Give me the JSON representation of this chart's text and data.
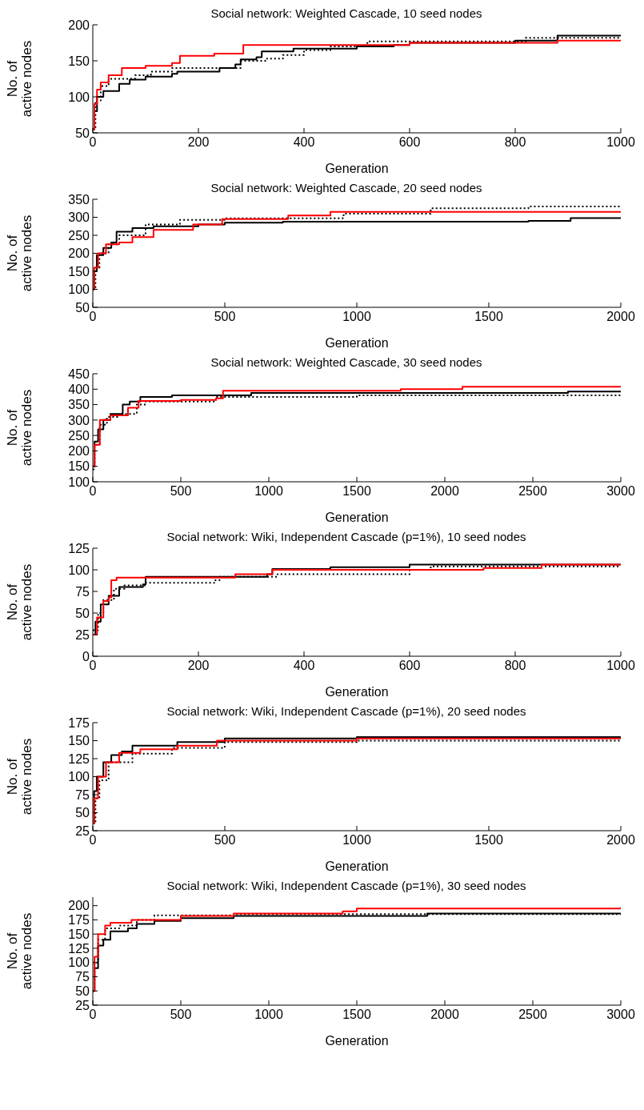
{
  "chart_data": [
    {
      "type": "step",
      "title": "Social network: Weighted Cascade, 10 seed nodes",
      "xlabel": "Generation",
      "ylabel": "No. of\nactive nodes",
      "xlim": [
        0,
        1000
      ],
      "xticks": [
        0,
        200,
        400,
        600,
        800,
        1000
      ],
      "ylim": [
        50,
        200
      ],
      "yticks": [
        50,
        100,
        150,
        200
      ],
      "series": [
        {
          "color": "#000000",
          "line_style": "solid",
          "x": [
            0,
            3,
            8,
            20,
            50,
            70,
            100,
            150,
            160,
            240,
            270,
            280,
            310,
            320,
            380,
            500,
            570,
            600,
            800,
            880,
            1000
          ],
          "values": [
            55,
            80,
            100,
            108,
            118,
            124,
            128,
            132,
            135,
            140,
            145,
            152,
            155,
            163,
            167,
            170,
            172,
            175,
            178,
            185,
            185
          ]
        },
        {
          "color": "#000000",
          "line_style": "dotted",
          "x": [
            0,
            5,
            15,
            30,
            80,
            110,
            150,
            280,
            330,
            360,
            400,
            450,
            520,
            820,
            1000
          ],
          "values": [
            55,
            95,
            115,
            125,
            130,
            135,
            140,
            150,
            153,
            158,
            165,
            170,
            177,
            182,
            182
          ]
        },
        {
          "color": "#ff0000",
          "line_style": "solid",
          "x": [
            0,
            3,
            8,
            15,
            30,
            55,
            100,
            150,
            165,
            230,
            285,
            600,
            880,
            1000
          ],
          "values": [
            55,
            90,
            110,
            120,
            130,
            140,
            143,
            147,
            157,
            160,
            172,
            175,
            178,
            178
          ]
        }
      ]
    },
    {
      "type": "step",
      "title": "Social network: Weighted Cascade, 20 seed nodes",
      "xlabel": "Generation",
      "ylabel": "No. of\nactive nodes",
      "xlim": [
        0,
        2000
      ],
      "xticks": [
        0,
        500,
        1000,
        1500,
        2000
      ],
      "ylim": [
        50,
        350
      ],
      "yticks": [
        50,
        100,
        150,
        200,
        250,
        300,
        350
      ],
      "series": [
        {
          "color": "#000000",
          "line_style": "solid",
          "x": [
            0,
            5,
            15,
            40,
            70,
            90,
            150,
            230,
            400,
            500,
            720,
            1650,
            1810,
            2000
          ],
          "values": [
            100,
            150,
            195,
            215,
            230,
            260,
            270,
            275,
            280,
            285,
            288,
            290,
            298,
            298
          ]
        },
        {
          "color": "#000000",
          "line_style": "dotted",
          "x": [
            0,
            10,
            25,
            60,
            100,
            200,
            330,
            500,
            950,
            1280,
            1650,
            2000
          ],
          "values": [
            100,
            160,
            200,
            225,
            250,
            280,
            293,
            297,
            310,
            325,
            330,
            330
          ]
        },
        {
          "color": "#ff0000",
          "line_style": "solid",
          "x": [
            0,
            5,
            20,
            50,
            100,
            150,
            230,
            380,
            490,
            740,
            900,
            2000
          ],
          "values": [
            100,
            160,
            200,
            225,
            230,
            245,
            265,
            280,
            295,
            305,
            315,
            315
          ]
        }
      ]
    },
    {
      "type": "step",
      "title": "Social network: Weighted Cascade, 30 seed nodes",
      "xlabel": "Generation",
      "ylabel": "No. of\nactive nodes",
      "xlim": [
        0,
        3000
      ],
      "xticks": [
        0,
        500,
        1000,
        1500,
        2000,
        2500,
        3000
      ],
      "ylim": [
        100,
        450
      ],
      "yticks": [
        100,
        150,
        200,
        250,
        300,
        350,
        400,
        450
      ],
      "series": [
        {
          "color": "#000000",
          "line_style": "solid",
          "x": [
            0,
            10,
            30,
            60,
            100,
            170,
            210,
            270,
            450,
            900,
            2700,
            3000
          ],
          "values": [
            150,
            230,
            270,
            300,
            320,
            350,
            360,
            375,
            380,
            388,
            392,
            395
          ]
        },
        {
          "color": "#000000",
          "line_style": "dotted",
          "x": [
            0,
            10,
            40,
            80,
            150,
            250,
            300,
            700,
            1500,
            3000
          ],
          "values": [
            140,
            220,
            285,
            310,
            320,
            350,
            360,
            375,
            380,
            380
          ]
        },
        {
          "color": "#ff0000",
          "line_style": "solid",
          "x": [
            0,
            10,
            40,
            100,
            200,
            260,
            500,
            700,
            740,
            1750,
            2100,
            3000
          ],
          "values": [
            150,
            220,
            300,
            315,
            340,
            362,
            365,
            370,
            395,
            400,
            408,
            408
          ]
        }
      ]
    },
    {
      "type": "step",
      "title": "Social network: Wiki, Independent Cascade (p=1%), 10 seed nodes",
      "xlabel": "Generation",
      "ylabel": "No. of\nactive nodes",
      "xlim": [
        0,
        1000
      ],
      "xticks": [
        0,
        200,
        400,
        600,
        800,
        1000
      ],
      "ylim": [
        0,
        125
      ],
      "yticks": [
        0,
        25,
        50,
        75,
        100,
        125
      ],
      "series": [
        {
          "color": "#000000",
          "line_style": "solid",
          "x": [
            0,
            5,
            15,
            30,
            50,
            95,
            100,
            330,
            340,
            450,
            600,
            1000
          ],
          "values": [
            25,
            40,
            60,
            70,
            80,
            83,
            92,
            95,
            101,
            103,
            106,
            107
          ]
        },
        {
          "color": "#000000",
          "line_style": "dotted",
          "x": [
            0,
            10,
            20,
            40,
            60,
            100,
            230,
            240,
            350,
            600,
            640,
            1000
          ],
          "values": [
            30,
            50,
            65,
            78,
            82,
            85,
            88,
            92,
            95,
            100,
            104,
            104
          ]
        },
        {
          "color": "#ff0000",
          "line_style": "solid",
          "x": [
            0,
            8,
            20,
            30,
            35,
            45,
            270,
            340,
            740,
            850,
            1000
          ],
          "values": [
            25,
            45,
            64,
            68,
            88,
            91,
            95,
            100,
            102,
            106,
            106
          ]
        }
      ]
    },
    {
      "type": "step",
      "title": "Social network: Wiki, Independent Cascade (p=1%), 20 seed nodes",
      "xlabel": "Generation",
      "ylabel": "No. of\nactive nodes",
      "xlim": [
        0,
        2000
      ],
      "xticks": [
        0,
        500,
        1000,
        1500,
        2000
      ],
      "ylim": [
        25,
        175
      ],
      "yticks": [
        25,
        50,
        75,
        100,
        125,
        150,
        175
      ],
      "series": [
        {
          "color": "#000000",
          "line_style": "solid",
          "x": [
            0,
            5,
            15,
            40,
            70,
            110,
            150,
            320,
            500,
            1000,
            2000
          ],
          "values": [
            35,
            80,
            100,
            120,
            130,
            135,
            143,
            148,
            153,
            155,
            156
          ]
        },
        {
          "color": "#000000",
          "line_style": "dotted",
          "x": [
            0,
            10,
            25,
            60,
            150,
            300,
            500,
            1000,
            2000
          ],
          "values": [
            35,
            70,
            95,
            120,
            132,
            140,
            148,
            150,
            150
          ]
        },
        {
          "color": "#ff0000",
          "line_style": "solid",
          "x": [
            0,
            5,
            20,
            50,
            100,
            180,
            320,
            470,
            1000,
            2000
          ],
          "values": [
            35,
            70,
            100,
            120,
            133,
            138,
            143,
            150,
            153,
            153
          ]
        }
      ]
    },
    {
      "type": "step",
      "title": "Social network: Wiki, Independent Cascade (p=1%), 30 seed nodes",
      "xlabel": "Generation",
      "ylabel": "No. of\nactive nodes",
      "xlim": [
        0,
        3000
      ],
      "xticks": [
        0,
        500,
        1000,
        1500,
        2000,
        2500,
        3000
      ],
      "ylim": [
        25,
        215
      ],
      "yticks": [
        25,
        50,
        75,
        100,
        125,
        150,
        175,
        200
      ],
      "series": [
        {
          "color": "#000000",
          "line_style": "solid",
          "x": [
            0,
            10,
            30,
            60,
            100,
            200,
            250,
            350,
            500,
            800,
            1900,
            3000
          ],
          "values": [
            50,
            90,
            130,
            140,
            155,
            160,
            168,
            173,
            178,
            182,
            186,
            186
          ]
        },
        {
          "color": "#000000",
          "line_style": "dotted",
          "x": [
            0,
            10,
            30,
            70,
            150,
            250,
            350,
            800,
            3000
          ],
          "values": [
            50,
            100,
            140,
            160,
            165,
            175,
            183,
            185,
            185
          ]
        },
        {
          "color": "#ff0000",
          "line_style": "solid",
          "x": [
            0,
            10,
            30,
            70,
            100,
            220,
            500,
            800,
            1420,
            1500,
            3000
          ],
          "values": [
            50,
            110,
            150,
            165,
            170,
            175,
            182,
            186,
            190,
            195,
            197
          ]
        }
      ]
    }
  ]
}
